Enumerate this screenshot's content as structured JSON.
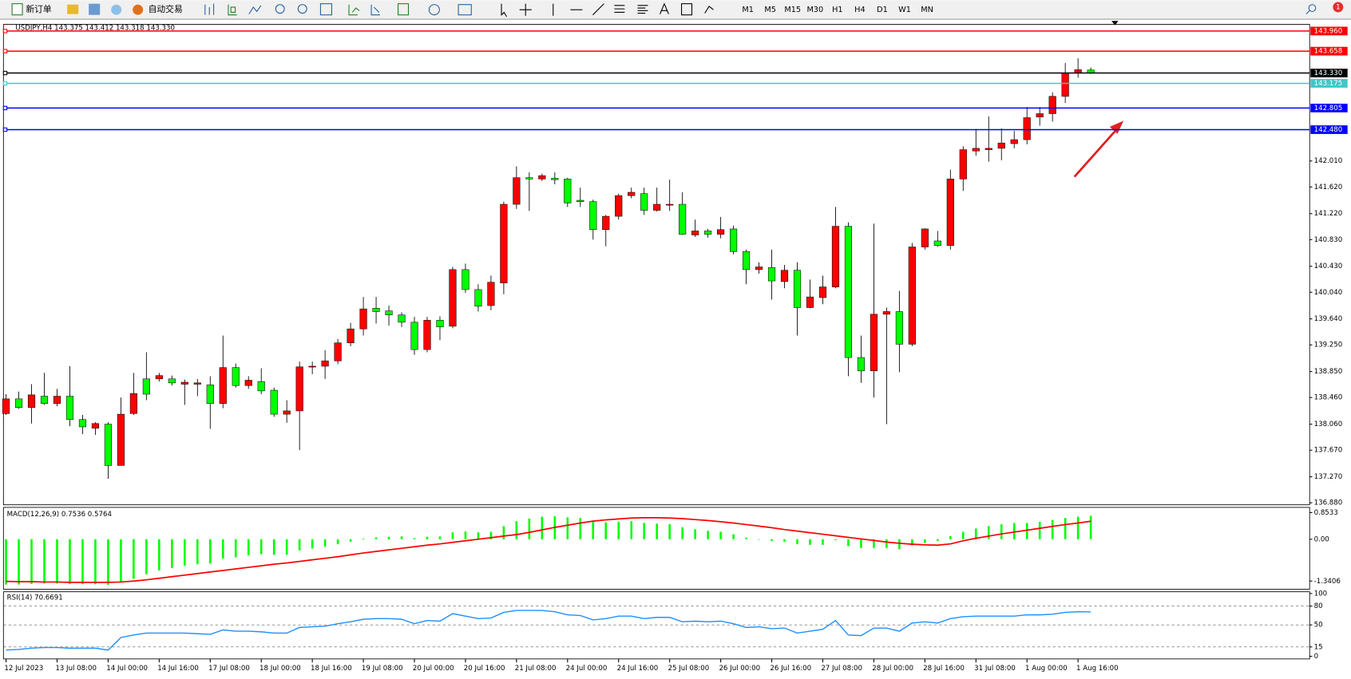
{
  "toolbar": {
    "new_order": "新订单",
    "auto_trading": "自动交易",
    "timeframes": [
      "M1",
      "M5",
      "M15",
      "M30",
      "H1",
      "H4",
      "D1",
      "W1",
      "MN"
    ],
    "badge": "1"
  },
  "chart_data": [
    {
      "type": "candlestick",
      "title": "USDJPY,H4  143.375 143.412 143.318 143.330",
      "up_color": "#ff0000",
      "down_color": "#00ff00",
      "categories": [
        "12 Jul 2023",
        null,
        null,
        null,
        "13 Jul 08:00",
        null,
        null,
        null,
        "14 Jul 00:00",
        null,
        null,
        null,
        "14 Jul 16:00",
        null,
        null,
        null,
        "17 Jul 08:00",
        null,
        null,
        null,
        "18 Jul 00:00",
        null,
        null,
        null,
        "18 Jul 16:00",
        null,
        null,
        null,
        "19 Jul 08:00",
        null,
        null,
        null,
        "20 Jul 00:00",
        null,
        null,
        null,
        "20 Jul 16:00",
        null,
        null,
        null,
        "21 Jul 08:00",
        null,
        null,
        null,
        "24 Jul 00:00",
        null,
        null,
        null,
        "24 Jul 16:00",
        null,
        null,
        null,
        "25 Jul 08:00",
        null,
        null,
        null,
        "26 Jul 00:00",
        null,
        null,
        null,
        "26 Jul 16:00",
        null,
        null,
        null,
        "27 Jul 08:00",
        null,
        null,
        null,
        "28 Jul 00:00",
        null,
        null,
        null,
        "28 Jul 16:00",
        null,
        null,
        null,
        "31 Jul 08:00",
        null,
        null,
        null,
        "1 Aug 00:00",
        null,
        null,
        null,
        "1 Aug 16:00",
        null
      ],
      "open": [
        138.22,
        138.44,
        138.31,
        138.48,
        138.37,
        138.48,
        138.13,
        138.0,
        138.06,
        137.44,
        138.22,
        138.74,
        138.74,
        138.74,
        138.66,
        138.66,
        138.65,
        138.37,
        138.91,
        138.64,
        138.7,
        138.57,
        138.21,
        138.26,
        138.92,
        138.93,
        139.01,
        139.28,
        139.49,
        139.8,
        139.76,
        139.7,
        139.59,
        139.18,
        139.62,
        139.53,
        140.38,
        140.08,
        139.84,
        140.18,
        141.36,
        141.76,
        141.74,
        141.75,
        141.74,
        141.42,
        141.4,
        140.98,
        141.18,
        141.49,
        141.52,
        141.27,
        141.35,
        141.36,
        140.9,
        140.96,
        140.91,
        140.99,
        140.65,
        140.38,
        140.41,
        140.2,
        140.37,
        139.81,
        139.96,
        140.12,
        141.03,
        139.06,
        138.86,
        139.71,
        139.75,
        139.26,
        140.72,
        140.81,
        140.74,
        141.74,
        142.16,
        142.18,
        142.2,
        142.27,
        142.33,
        142.67,
        142.72,
        142.98,
        143.33,
        143.375
      ],
      "high": [
        138.51,
        138.55,
        138.66,
        138.83,
        138.59,
        138.93,
        138.2,
        138.09,
        138.09,
        138.46,
        138.83,
        139.14,
        138.83,
        138.79,
        138.73,
        138.74,
        138.78,
        139.39,
        138.97,
        138.78,
        138.9,
        138.61,
        138.42,
        139.0,
        139.0,
        139.17,
        139.34,
        139.58,
        139.97,
        139.97,
        139.84,
        139.74,
        139.67,
        139.67,
        139.68,
        140.42,
        140.47,
        140.16,
        140.29,
        141.4,
        141.93,
        141.84,
        141.82,
        141.84,
        141.76,
        141.61,
        141.43,
        141.2,
        141.52,
        141.61,
        141.61,
        141.61,
        141.73,
        141.54,
        141.13,
        140.99,
        141.17,
        141.04,
        140.68,
        140.49,
        140.68,
        140.45,
        140.49,
        140.23,
        140.29,
        141.32,
        141.09,
        139.39,
        141.07,
        139.81,
        140.06,
        140.78,
        141.0,
        140.96,
        141.88,
        142.23,
        142.49,
        142.68,
        142.5,
        142.46,
        142.82,
        142.82,
        143.04,
        143.48,
        143.55,
        143.412
      ],
      "low": [
        138.2,
        138.29,
        138.07,
        138.35,
        138.33,
        138.03,
        137.91,
        137.9,
        137.24,
        137.44,
        138.2,
        138.42,
        138.7,
        138.64,
        138.35,
        138.48,
        137.99,
        138.3,
        138.61,
        138.59,
        138.51,
        138.17,
        138.08,
        137.67,
        138.81,
        138.74,
        138.96,
        139.23,
        139.39,
        139.57,
        139.54,
        139.52,
        139.1,
        139.14,
        139.32,
        139.5,
        140.03,
        139.75,
        139.77,
        140.01,
        141.29,
        141.26,
        141.71,
        141.66,
        141.32,
        141.32,
        140.83,
        140.73,
        141.13,
        141.45,
        141.2,
        141.25,
        141.26,
        140.9,
        140.87,
        140.86,
        140.85,
        140.61,
        140.16,
        140.32,
        139.93,
        140.1,
        139.39,
        139.8,
        139.86,
        140.1,
        138.78,
        138.68,
        138.46,
        138.06,
        138.84,
        139.23,
        140.68,
        140.72,
        140.68,
        141.56,
        142.09,
        142.0,
        142.02,
        142.2,
        142.26,
        142.54,
        142.6,
        142.88,
        143.26,
        143.318
      ],
      "close": [
        138.44,
        138.31,
        138.5,
        138.37,
        138.48,
        138.13,
        138.02,
        138.07,
        137.44,
        138.21,
        138.52,
        138.51,
        138.79,
        138.68,
        138.69,
        138.68,
        138.37,
        138.91,
        138.64,
        138.72,
        138.56,
        138.21,
        138.26,
        138.92,
        138.93,
        139.01,
        139.28,
        139.49,
        139.79,
        139.75,
        139.7,
        139.59,
        139.18,
        139.62,
        139.52,
        140.38,
        140.08,
        139.83,
        140.19,
        141.36,
        141.76,
        141.74,
        141.79,
        141.73,
        141.38,
        141.4,
        140.98,
        141.18,
        141.49,
        141.54,
        141.27,
        141.36,
        141.36,
        140.91,
        140.96,
        140.91,
        140.98,
        140.65,
        140.38,
        140.42,
        140.21,
        140.37,
        139.81,
        139.97,
        140.12,
        141.03,
        139.06,
        138.86,
        139.71,
        139.75,
        139.26,
        140.72,
        140.99,
        140.74,
        141.74,
        142.18,
        142.2,
        142.2,
        142.28,
        142.33,
        142.66,
        142.72,
        142.98,
        143.33,
        143.38,
        143.33
      ],
      "ylim": [
        136.85,
        144.06
      ],
      "yticks": [
        {
          "value": 136.88,
          "label": "136.880"
        },
        {
          "value": 137.27,
          "label": "137.270"
        },
        {
          "value": 137.67,
          "label": "137.670"
        },
        {
          "value": 138.06,
          "label": "138.060"
        },
        {
          "value": 138.46,
          "label": "138.460"
        },
        {
          "value": 138.85,
          "label": "138.850"
        },
        {
          "value": 139.25,
          "label": "139.250"
        },
        {
          "value": 139.64,
          "label": "139.640"
        },
        {
          "value": 140.04,
          "label": "140.040"
        },
        {
          "value": 140.43,
          "label": "140.430"
        },
        {
          "value": 140.83,
          "label": "140.830"
        },
        {
          "value": 141.22,
          "label": "141.220"
        },
        {
          "value": 141.62,
          "label": "141.620"
        },
        {
          "value": 142.01,
          "label": "142.010"
        }
      ],
      "hlines": [
        {
          "value": 143.96,
          "label": "143.960",
          "color": "#ff0000"
        },
        {
          "value": 143.658,
          "color": "#ff0000"
        },
        {
          "value": 143.33,
          "label": "143.330",
          "color": "#000000"
        },
        {
          "value": 143.175,
          "color": "#40c8c8"
        },
        {
          "value": 142.805,
          "color": "#0000ff"
        },
        {
          "value": 142.48,
          "label": "142.480",
          "color": "#0000ff"
        }
      ]
    },
    {
      "type": "macd",
      "title": "MACD(12,26,9) 0.7536 0.5764",
      "series": [
        {
          "type": "bar",
          "color": "#00ff00",
          "values": [
            -1.45,
            -1.45,
            -1.43,
            -1.42,
            -1.42,
            -1.43,
            -1.44,
            -1.44,
            -1.46,
            -1.38,
            -1.27,
            -1.12,
            -1.0,
            -0.92,
            -0.85,
            -0.8,
            -0.78,
            -0.62,
            -0.58,
            -0.52,
            -0.48,
            -0.5,
            -0.5,
            -0.36,
            -0.3,
            -0.24,
            -0.16,
            -0.08,
            0.02,
            0.06,
            0.08,
            0.09,
            0.04,
            0.08,
            0.09,
            0.22,
            0.25,
            0.22,
            0.24,
            0.42,
            0.58,
            0.66,
            0.72,
            0.74,
            0.7,
            0.68,
            0.58,
            0.54,
            0.56,
            0.58,
            0.52,
            0.5,
            0.48,
            0.38,
            0.32,
            0.27,
            0.24,
            0.16,
            0.05,
            0.0,
            -0.06,
            -0.08,
            -0.16,
            -0.18,
            -0.18,
            -0.03,
            -0.22,
            -0.28,
            -0.28,
            -0.28,
            -0.32,
            -0.2,
            -0.12,
            -0.06,
            0.1,
            0.24,
            0.34,
            0.42,
            0.48,
            0.52,
            0.52,
            0.56,
            0.62,
            0.68,
            0.72,
            0.7536
          ]
        },
        {
          "type": "line",
          "color": "#ff0000",
          "values": [
            -1.35,
            -1.36,
            -1.36,
            -1.37,
            -1.37,
            -1.38,
            -1.38,
            -1.38,
            -1.38,
            -1.37,
            -1.34,
            -1.3,
            -1.25,
            -1.2,
            -1.15,
            -1.1,
            -1.05,
            -1.0,
            -0.95,
            -0.9,
            -0.85,
            -0.8,
            -0.76,
            -0.71,
            -0.66,
            -0.61,
            -0.56,
            -0.5,
            -0.44,
            -0.39,
            -0.34,
            -0.29,
            -0.24,
            -0.19,
            -0.15,
            -0.1,
            -0.05,
            0.0,
            0.05,
            0.1,
            0.15,
            0.22,
            0.3,
            0.38,
            0.45,
            0.52,
            0.58,
            0.62,
            0.65,
            0.68,
            0.69,
            0.69,
            0.68,
            0.66,
            0.63,
            0.6,
            0.56,
            0.52,
            0.47,
            0.42,
            0.37,
            0.31,
            0.26,
            0.21,
            0.16,
            0.11,
            0.06,
            0.01,
            -0.04,
            -0.09,
            -0.13,
            -0.16,
            -0.18,
            -0.19,
            -0.15,
            -0.05,
            0.03,
            0.1,
            0.17,
            0.23,
            0.29,
            0.35,
            0.41,
            0.47,
            0.52,
            0.5764
          ]
        }
      ],
      "ylim": [
        -1.6,
        1.02
      ],
      "yticks": [
        0.8533,
        {
          "value": 0,
          "label": "0.00"
        },
        -1.3406
      ]
    },
    {
      "type": "line",
      "title": "RSI(14) 70.6691",
      "color": "#1e90ff",
      "values": [
        10,
        11,
        13,
        14,
        14,
        13,
        13,
        13,
        10,
        30,
        34,
        37,
        37,
        37,
        37,
        36,
        35,
        42,
        40,
        40,
        39,
        37,
        37,
        46,
        47,
        48,
        52,
        55,
        59,
        60,
        60,
        59,
        52,
        57,
        56,
        68,
        64,
        60,
        61,
        70,
        73,
        73,
        73,
        71,
        66,
        65,
        58,
        60,
        64,
        64,
        60,
        62,
        62,
        55,
        56,
        55,
        56,
        52,
        46,
        47,
        44,
        45,
        37,
        40,
        43,
        57,
        34,
        33,
        45,
        45,
        40,
        53,
        55,
        53,
        60,
        63,
        64,
        64,
        64,
        64,
        66,
        66,
        67,
        70,
        71,
        70.6691
      ],
      "ylim": [
        0,
        100
      ],
      "yticks": [
        100,
        80,
        50,
        15,
        0
      ]
    }
  ]
}
